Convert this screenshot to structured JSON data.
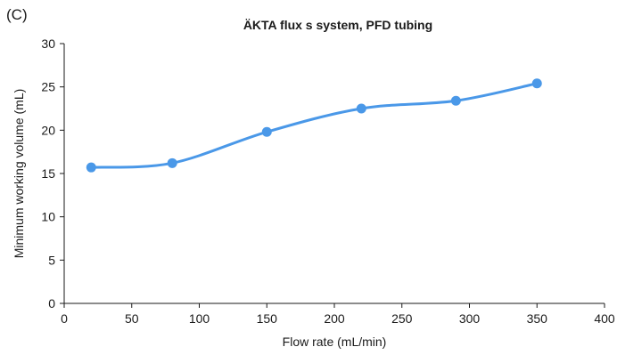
{
  "panel_label": "(C)",
  "chart_data": {
    "type": "line",
    "title": "ÄKTA flux s system, PFD tubing",
    "xlabel": "Flow rate (mL/min)",
    "ylabel": "Minimum working volume (mL)",
    "xlim": [
      0,
      400
    ],
    "ylim": [
      0,
      30
    ],
    "xticks": [
      "0",
      "50",
      "100",
      "150",
      "200",
      "250",
      "300",
      "350",
      "400"
    ],
    "yticks": [
      "0",
      "5",
      "10",
      "15",
      "20",
      "25",
      "30"
    ],
    "grid": false,
    "legend": "none",
    "color": "#4a98e8",
    "series": [
      {
        "x": [
          20,
          80,
          150,
          220,
          290,
          350
        ],
        "y": [
          15.7,
          16.2,
          19.8,
          22.5,
          23.4,
          25.4
        ],
        "smooth": true,
        "markers": true
      }
    ]
  }
}
